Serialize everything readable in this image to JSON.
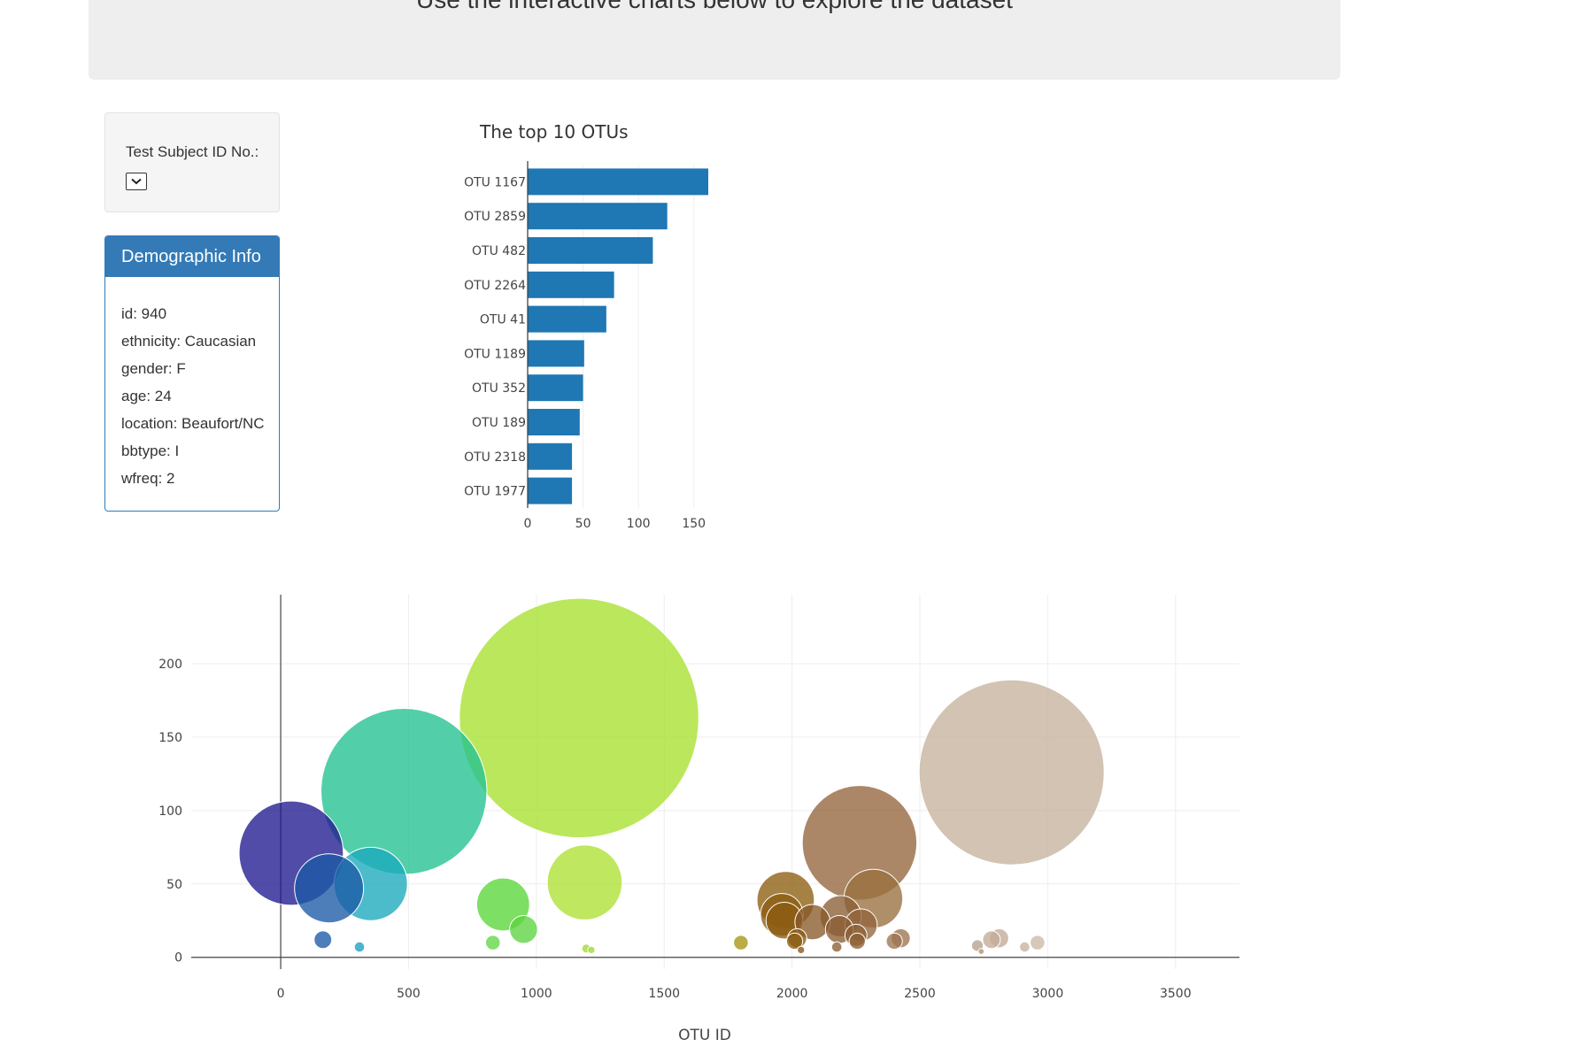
{
  "header": {
    "subtitle": "Use the interactive charts below to explore the dataset"
  },
  "selector": {
    "label": "Test Subject ID No.:",
    "selected": ""
  },
  "demographics": {
    "title": "Demographic Info",
    "lines": [
      "id: 940",
      "ethnicity: Caucasian",
      "gender: F",
      "age: 24",
      "location: Beaufort/NC",
      "bbtype: I",
      "wfreq: 2"
    ]
  },
  "colors": {
    "accent": "#337ab7",
    "bar": "#1f77b4",
    "jumbotron": "#eeeeee"
  },
  "chart_data": [
    {
      "type": "bar",
      "orientation": "horizontal",
      "title": "The top 10 OTUs",
      "categories": [
        "OTU 1167",
        "OTU 2859",
        "OTU 482",
        "OTU 2264",
        "OTU 41",
        "OTU 1189",
        "OTU 352",
        "OTU 189",
        "OTU 2318",
        "OTU 1977"
      ],
      "values": [
        163,
        126,
        113,
        78,
        71,
        51,
        50,
        47,
        40,
        40
      ],
      "xticks": [
        0,
        50,
        100,
        150
      ],
      "xlim": [
        0,
        163
      ]
    },
    {
      "type": "scatter",
      "style": "bubble",
      "title": "",
      "xlabel": "OTU ID",
      "ylabel": "",
      "xlim": [
        -350,
        3750
      ],
      "ylim": [
        -8,
        247
      ],
      "xticks": [
        0,
        500,
        1000,
        1500,
        2000,
        2500,
        3000,
        3500
      ],
      "yticks": [
        0,
        50,
        100,
        150,
        200
      ],
      "colorscale": "Earth",
      "points": [
        {
          "x": 41,
          "y": 71,
          "color": "#1f1a8e"
        },
        {
          "x": 189,
          "y": 47,
          "color": "#1c5aa6"
        },
        {
          "x": 165,
          "y": 12,
          "color": "#1c5aa6"
        },
        {
          "x": 352,
          "y": 50,
          "color": "#1aa9bd"
        },
        {
          "x": 308,
          "y": 7,
          "color": "#1a9fc2"
        },
        {
          "x": 482,
          "y": 113,
          "color": "#21c190"
        },
        {
          "x": 870,
          "y": 36,
          "color": "#59d638"
        },
        {
          "x": 950,
          "y": 19,
          "color": "#5cd440"
        },
        {
          "x": 830,
          "y": 10,
          "color": "#61d645"
        },
        {
          "x": 1167,
          "y": 163,
          "color": "#a8e030"
        },
        {
          "x": 1189,
          "y": 51,
          "color": "#ade032"
        },
        {
          "x": 1195,
          "y": 6,
          "color": "#a0d833"
        },
        {
          "x": 1215,
          "y": 5,
          "color": "#a0d833"
        },
        {
          "x": 1800,
          "y": 10,
          "color": "#a69614"
        },
        {
          "x": 1975,
          "y": 39,
          "color": "#8c5d10"
        },
        {
          "x": 1960,
          "y": 29,
          "color": "#8c5d10"
        },
        {
          "x": 1970,
          "y": 25,
          "color": "#8a5b0f"
        },
        {
          "x": 2020,
          "y": 13,
          "color": "#8a5b0f"
        },
        {
          "x": 2010,
          "y": 11,
          "color": "#8a5b0f"
        },
        {
          "x": 2035,
          "y": 5,
          "color": "#855618"
        },
        {
          "x": 2080,
          "y": 24,
          "color": "#885a2a"
        },
        {
          "x": 2190,
          "y": 28,
          "color": "#8b5e34"
        },
        {
          "x": 2185,
          "y": 19,
          "color": "#8b5e34"
        },
        {
          "x": 2175,
          "y": 7,
          "color": "#8b5e34"
        },
        {
          "x": 2250,
          "y": 15,
          "color": "#8c6036"
        },
        {
          "x": 2255,
          "y": 11,
          "color": "#8c6036"
        },
        {
          "x": 2264,
          "y": 78,
          "color": "#93653c"
        },
        {
          "x": 2270,
          "y": 22,
          "color": "#93653c"
        },
        {
          "x": 2318,
          "y": 40,
          "color": "#98703f"
        },
        {
          "x": 2400,
          "y": 11,
          "color": "#9c7550"
        },
        {
          "x": 2425,
          "y": 13,
          "color": "#9c7550"
        },
        {
          "x": 2725,
          "y": 8,
          "color": "#b9a08c"
        },
        {
          "x": 2740,
          "y": 4,
          "color": "#b09070"
        },
        {
          "x": 2780,
          "y": 12,
          "color": "#c3ab97"
        },
        {
          "x": 2810,
          "y": 13,
          "color": "#c3ab97"
        },
        {
          "x": 2859,
          "y": 126,
          "color": "#c7b29d"
        },
        {
          "x": 2910,
          "y": 7,
          "color": "#c7b29d"
        },
        {
          "x": 2960,
          "y": 10,
          "color": "#cdb9a6"
        }
      ]
    }
  ]
}
